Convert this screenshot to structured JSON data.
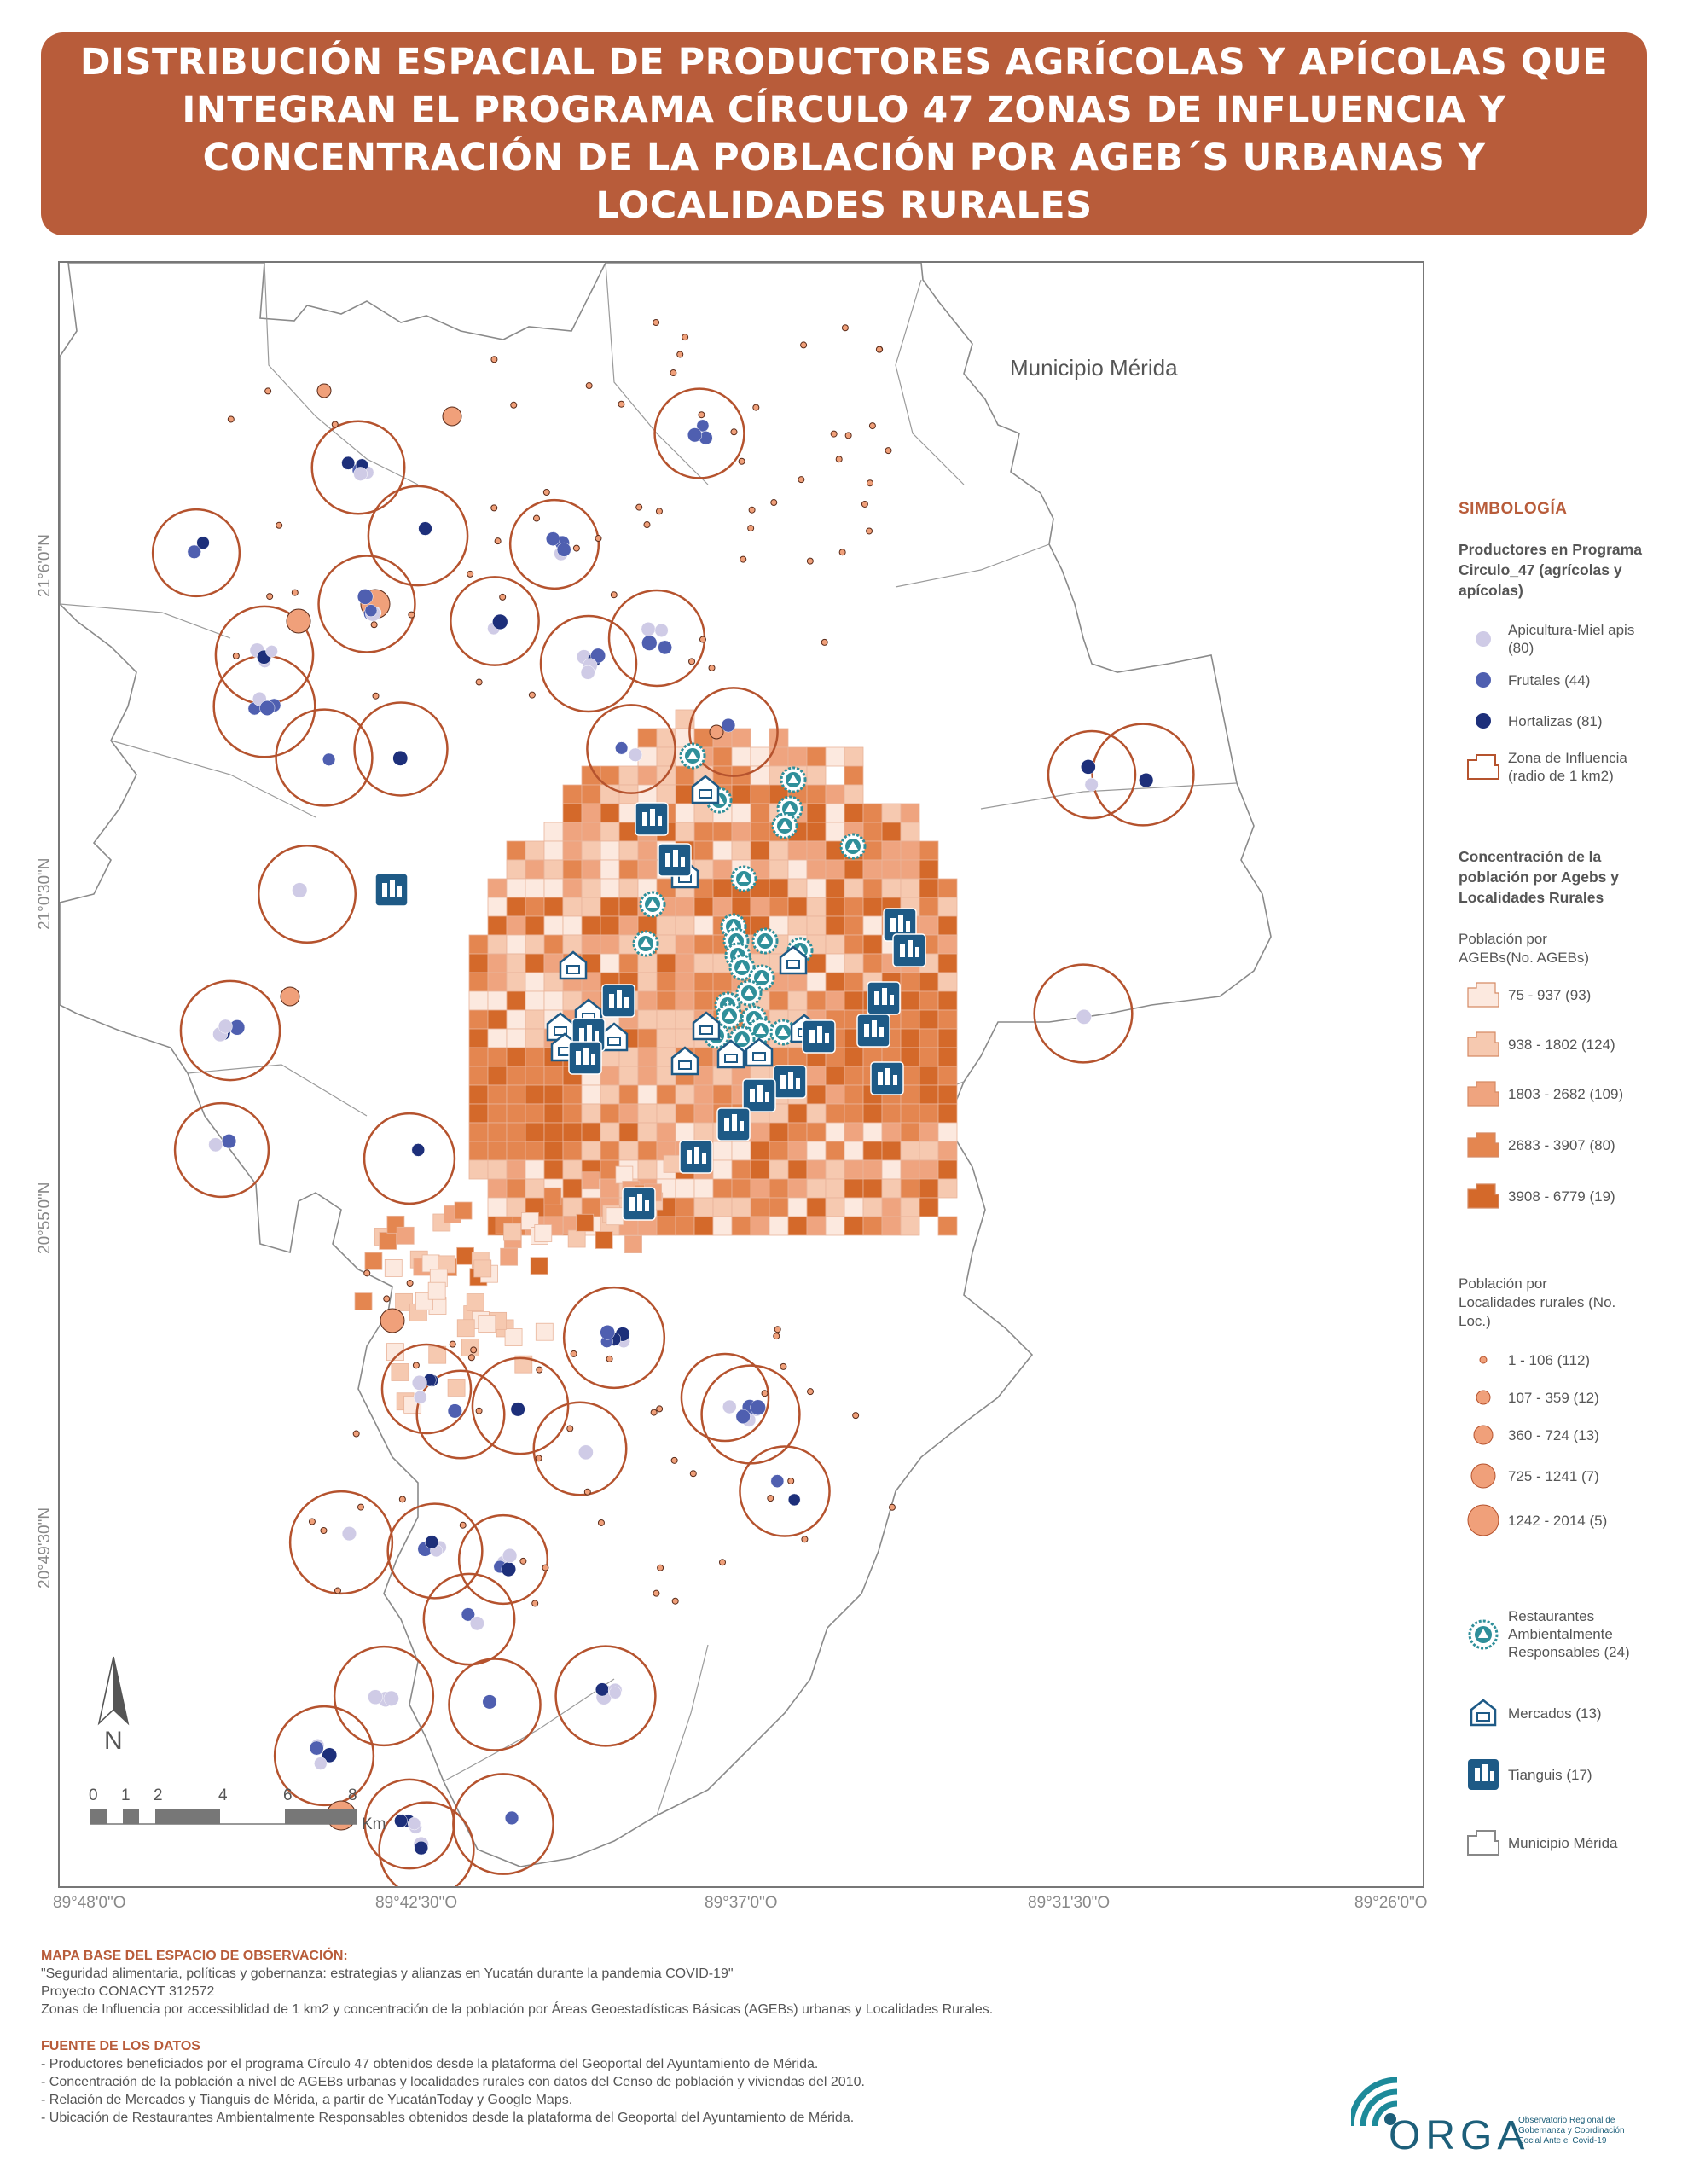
{
  "title": "DISTRIBUCIÓN ESPACIAL DE PRODUCTORES AGRÍCOLAS Y APÍCOLAS QUE INTEGRAN EL PROGRAMA CÍRCULO 47 ZONAS DE INFLUENCIA Y CONCENTRACIÓN DE LA POBLACIÓN POR AGEB´S URBANAS Y LOCALIDADES RURALES",
  "map": {
    "municipality_label": "Municipio Mérida",
    "lat_labels": [
      "21°6'0\"N",
      "21°0'30\"N",
      "20°55'0\"N",
      "20°49'30\"N"
    ],
    "lon_labels": [
      "89°48'0\"O",
      "89°42'30\"O",
      "89°37'0\"O",
      "89°31'30\"O",
      "89°26'0\"O"
    ],
    "north_label": "N",
    "scale_ticks": [
      "0",
      "1",
      "2",
      "4",
      "6",
      "8"
    ],
    "scale_unit": "Km"
  },
  "legend": {
    "heading": "SIMBOLOGÍA",
    "producers_heading": "Productores en Programa Circulo_47 (agrícolas y apícolas)",
    "producers": [
      {
        "label": "Apicultura-Miel apis (80)",
        "color": "#cfcbe6"
      },
      {
        "label": "Frutales (44)",
        "color": "#4f5fb0"
      },
      {
        "label": "Hortalizas (81)",
        "color": "#1d2f7a"
      }
    ],
    "zone_label": "Zona de Influencia (radio de 1 km2)",
    "zone_color": "#b5532e",
    "population_heading": "Concentración de la población por Agebs y Localidades Rurales",
    "ageb_sub": "Población por AGEBs(No. AGEBs)",
    "ageb_classes": [
      {
        "label": "75 - 937 (93)",
        "color": "#fce9df"
      },
      {
        "label": "938 - 1802 (124)",
        "color": "#f6c9b0"
      },
      {
        "label": "1803 - 2682 (109)",
        "color": "#efa47f"
      },
      {
        "label": "2683 - 3907 (80)",
        "color": "#e48650"
      },
      {
        "label": "3908 - 6779 (19)",
        "color": "#d4692a"
      }
    ],
    "rural_sub": "Población por Localidades rurales (No. Loc.)",
    "rural_classes": [
      {
        "label": "1 - 106 (112)"
      },
      {
        "label": "107 - 359 (12)"
      },
      {
        "label": "360 - 724 (13)"
      },
      {
        "label": "725 - 1241 (7)"
      },
      {
        "label": "1242 - 2014 (5)"
      }
    ],
    "rural_color": "#f0a07a",
    "restaurants_label": "Restaurantes Ambientalmente Responsables (24)",
    "markets_label": "Mercados (13)",
    "tianguis_label": "Tianguis (17)",
    "muni_label": "Municipio Mérida",
    "teal": "#2f8f9a",
    "icon_blue": "#1e5a86"
  },
  "footer": {
    "base_heading": "MAPA BASE DEL ESPACIO DE OBSERVACIÓN:",
    "base_lines": [
      "\"Seguridad alimentaria, políticas y gobernanza: estrategias y alianzas en Yucatán durante la pandemia COVID-19\"",
      "Proyecto CONACYT 312572",
      "Zonas de Influencia por accessiblidad de 1 km2  y concentración de la población por Áreas Geoestadísticas Básicas (AGEBs) urbanas y Localidades Rurales."
    ],
    "sources_heading": "FUENTE DE LOS DATOS",
    "sources": [
      "- Productores beneficiados por el programa Círculo 47 obtenidos desde la plataforma del Geoportal del Ayuntamiento de Mérida.",
      "- Concentración de la población a nivel de AGEBs  urbanas y localidades rurales con datos del Censo de población y viviendas del 2010.",
      "- Relación de Mercados y Tianguis de Mérida, a partir de YucatánToday y Google Maps.",
      "- Ubicación de Restaurantes Ambientalmente Responsables obtenidos desde la plataforma del Geoportal del Ayuntamiento de Mérida."
    ]
  },
  "logo": {
    "name": "ORGA",
    "tagline": "Observatorio Regional de Gobernanza y Coordinación Social Ante el Covid-19"
  }
}
